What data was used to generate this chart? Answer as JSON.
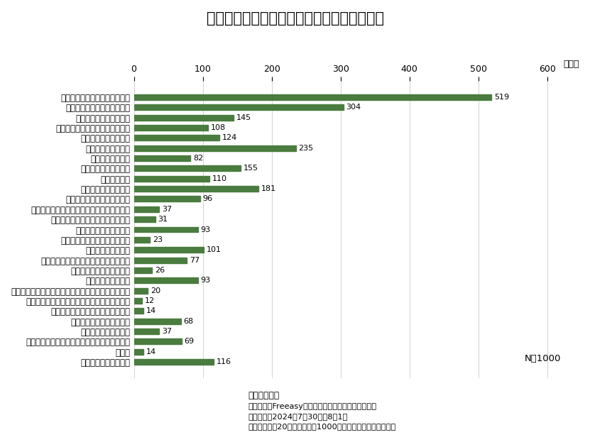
{
  "title": "夏の夜、快眠を得るためにしていることは？",
  "categories": [
    "クーラーをつけっぱなしにする",
    "扇風機をつけっぱなしにする",
    "窓をあけっぱなしにする",
    "保冷剤保冷枕などのグッズを使う",
    "冷感素材の寝具を使う",
    "照明を真っ暗にする",
    "照明を薄暗くする",
    "夜遅くに食事をしない",
    "食べすぎない",
    "規則正しい生活を送る",
    "朝、朝陽を浴びるようにする",
    "睡眠の質を上げると言われる食品栄養を摂る",
    "睡眠対策になるサプリメントを摂る",
    "軽い運動散歩などをする",
    "疲労するほどの運動活動をする",
    "カフェインを控える",
    "夕方以降や寝際にカフェインを摂らない",
    "カフェインを一切摂らない",
    "ストレスを溜めない",
    "塗り絵や日記など、ストレス緩和のための行動をする",
    "マインドフルネスにつながるアクションをする",
    "寝る前にハーブティなどお茶を飲む",
    "寝る前にストレッチをする",
    "寝る前に呼吸を整える",
    "寝る前にパソコンやスマホを見ないようにする",
    "その他",
    "あてはまるものはない"
  ],
  "values": [
    519,
    304,
    145,
    108,
    124,
    235,
    82,
    155,
    110,
    181,
    96,
    37,
    31,
    93,
    23,
    101,
    77,
    26,
    93,
    20,
    12,
    14,
    68,
    37,
    69,
    14,
    116
  ],
  "bar_color": "#4a7c3f",
  "ylabel": "（人）",
  "xlim": [
    0,
    620
  ],
  "xticks": [
    0,
    100,
    200,
    300,
    400,
    500,
    600
  ],
  "n_label": "N＝1000",
  "footer_bold": "大正製薬調査",
  "footer_lines": [
    "調査機関：Freeasy　調査形式：インターネット調査",
    "調査期間：2024年7月30日～8月1日",
    "対象：全国の20代以上の男女1000名（性別・年代均等割付）"
  ],
  "background_color": "#ffffff",
  "title_fontsize": 15,
  "label_fontsize": 8.5,
  "value_fontsize": 8.0,
  "tick_fontsize": 9,
  "bar_height": 0.55
}
